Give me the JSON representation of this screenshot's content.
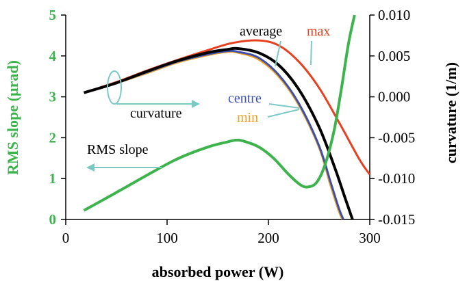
{
  "chart_data": {
    "type": "line",
    "xlabel": "absorbed power (W)",
    "ylabel_left": "RMS slope (µrad)",
    "ylabel_right": "curvature (1/m)",
    "xlim": [
      0,
      300
    ],
    "ylim_left": [
      0,
      5
    ],
    "ylim_right": [
      -0.015,
      0.01
    ],
    "x_ticks": [
      0,
      100,
      200,
      300
    ],
    "y_ticks_left": [
      0,
      1,
      2,
      3,
      4,
      5
    ],
    "y_ticks_right": [
      -0.015,
      -0.01,
      -0.005,
      0.0,
      0.005,
      0.01
    ],
    "x_tick_labels": [
      "0",
      "100",
      "200",
      "300"
    ],
    "y_tick_labels_left": [
      "0",
      "1",
      "2",
      "3",
      "4",
      "5"
    ],
    "y_tick_labels_right": [
      "-0.015",
      "-0.010",
      "-0.005",
      "0.000",
      "0.005",
      "0.010"
    ],
    "grid": false,
    "series": [
      {
        "name": "RMS slope",
        "axis": "left",
        "color": "#3cb44b",
        "points": [
          [
            18,
            0.22
          ],
          [
            50,
            0.66
          ],
          [
            80,
            1.08
          ],
          [
            110,
            1.48
          ],
          [
            140,
            1.77
          ],
          [
            160,
            1.9
          ],
          [
            168,
            1.94
          ],
          [
            175,
            1.92
          ],
          [
            190,
            1.78
          ],
          [
            205,
            1.5
          ],
          [
            220,
            1.1
          ],
          [
            232,
            0.84
          ],
          [
            240,
            0.8
          ],
          [
            248,
            0.92
          ],
          [
            256,
            1.35
          ],
          [
            265,
            2.2
          ],
          [
            272,
            3.2
          ],
          [
            279,
            4.3
          ],
          [
            285,
            5.0
          ]
        ]
      },
      {
        "name": "max",
        "axis": "right",
        "color": "#e8401e",
        "points": [
          [
            18,
            0.0005
          ],
          [
            50,
            0.0018
          ],
          [
            80,
            0.0032
          ],
          [
            110,
            0.0045
          ],
          [
            140,
            0.0057
          ],
          [
            165,
            0.0066
          ],
          [
            190,
            0.0069
          ],
          [
            210,
            0.0063
          ],
          [
            230,
            0.0043
          ],
          [
            250,
            0.0011
          ],
          [
            270,
            -0.0032
          ],
          [
            290,
            -0.0077
          ],
          [
            300,
            -0.0095
          ]
        ]
      },
      {
        "name": "average",
        "axis": "right",
        "color": "#000000",
        "points": [
          [
            18,
            0.0005
          ],
          [
            50,
            0.0017
          ],
          [
            80,
            0.0031
          ],
          [
            110,
            0.0044
          ],
          [
            140,
            0.0054
          ],
          [
            160,
            0.0058
          ],
          [
            170,
            0.0059
          ],
          [
            190,
            0.0054
          ],
          [
            210,
            0.0039
          ],
          [
            230,
            0.0009
          ],
          [
            250,
            -0.0037
          ],
          [
            265,
            -0.0085
          ],
          [
            276,
            -0.0125
          ],
          [
            283,
            -0.015
          ]
        ]
      },
      {
        "name": "centre",
        "axis": "right",
        "color": "#3a4fb0",
        "points": [
          [
            18,
            0.0005
          ],
          [
            50,
            0.0017
          ],
          [
            80,
            0.003
          ],
          [
            110,
            0.0043
          ],
          [
            140,
            0.0052
          ],
          [
            160,
            0.0056
          ],
          [
            170,
            0.0055
          ],
          [
            190,
            0.0048
          ],
          [
            210,
            0.0027
          ],
          [
            230,
            -0.0008
          ],
          [
            250,
            -0.006
          ],
          [
            262,
            -0.0107
          ],
          [
            270,
            -0.0138
          ],
          [
            274,
            -0.015
          ]
        ]
      },
      {
        "name": "min",
        "axis": "right",
        "color": "#f0a020",
        "points": [
          [
            18,
            0.0005
          ],
          [
            50,
            0.0017
          ],
          [
            80,
            0.0029
          ],
          [
            110,
            0.0042
          ],
          [
            140,
            0.0051
          ],
          [
            160,
            0.0055
          ],
          [
            170,
            0.0054
          ],
          [
            190,
            0.0046
          ],
          [
            210,
            0.0025
          ],
          [
            230,
            -0.001
          ],
          [
            250,
            -0.0062
          ],
          [
            261,
            -0.0107
          ],
          [
            269,
            -0.0138
          ],
          [
            273,
            -0.015
          ]
        ]
      }
    ],
    "annotations": [
      {
        "text": "average",
        "color": "#000000"
      },
      {
        "text": "max",
        "color": "#e8401e"
      },
      {
        "text": "centre",
        "color": "#3a4fb0"
      },
      {
        "text": "min",
        "color": "#f0a020"
      },
      {
        "text": "curvature",
        "color": "#000000"
      },
      {
        "text": "RMS slope",
        "color": "#000000"
      }
    ],
    "colors": {
      "left_axis": "#3cb44b",
      "pointer": "#7ccac6"
    }
  }
}
